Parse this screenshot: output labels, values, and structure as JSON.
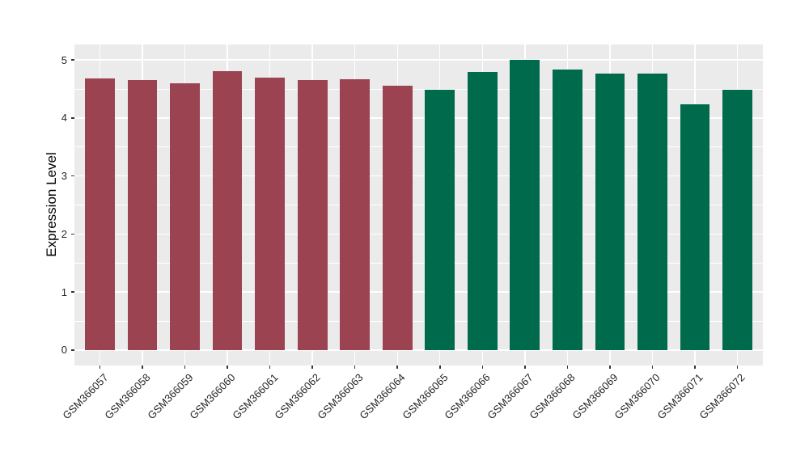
{
  "chart_data": {
    "type": "bar",
    "title": "",
    "xlabel": "",
    "ylabel": "Expression Level",
    "categories": [
      "GSM366057",
      "GSM366058",
      "GSM366059",
      "GSM366060",
      "GSM366061",
      "GSM366062",
      "GSM366063",
      "GSM366064",
      "GSM366065",
      "GSM366066",
      "GSM366067",
      "GSM366068",
      "GSM366069",
      "GSM366070",
      "GSM366071",
      "GSM366072"
    ],
    "values": [
      4.68,
      4.65,
      4.59,
      4.8,
      4.69,
      4.65,
      4.67,
      4.55,
      4.48,
      4.79,
      5.0,
      4.83,
      4.76,
      4.76,
      4.24,
      4.48
    ],
    "bar_colors": [
      "#9C4351",
      "#9C4351",
      "#9C4351",
      "#9C4351",
      "#9C4351",
      "#9C4351",
      "#9C4351",
      "#9C4351",
      "#006A4C",
      "#006A4C",
      "#006A4C",
      "#006A4C",
      "#006A4C",
      "#006A4C",
      "#006A4C",
      "#006A4C"
    ],
    "group_colors": {
      "left_group": "#9C4351",
      "right_group": "#006A4C"
    },
    "y_ticks": [
      0,
      1,
      2,
      3,
      4,
      5
    ],
    "y_minor_ticks": [
      0.5,
      1.5,
      2.5,
      3.5,
      4.5
    ],
    "ylim": [
      0,
      5
    ],
    "grid": "on",
    "legend": "none",
    "x_label_angle_deg": 45
  },
  "styles": {
    "panel_background": "#EBEBEB",
    "grid_color": "#FFFFFF",
    "tick_color": "#333333",
    "tick_label_color": "#262626",
    "axis_title_color": "#000000",
    "figure_background": "#FFFFFF"
  }
}
